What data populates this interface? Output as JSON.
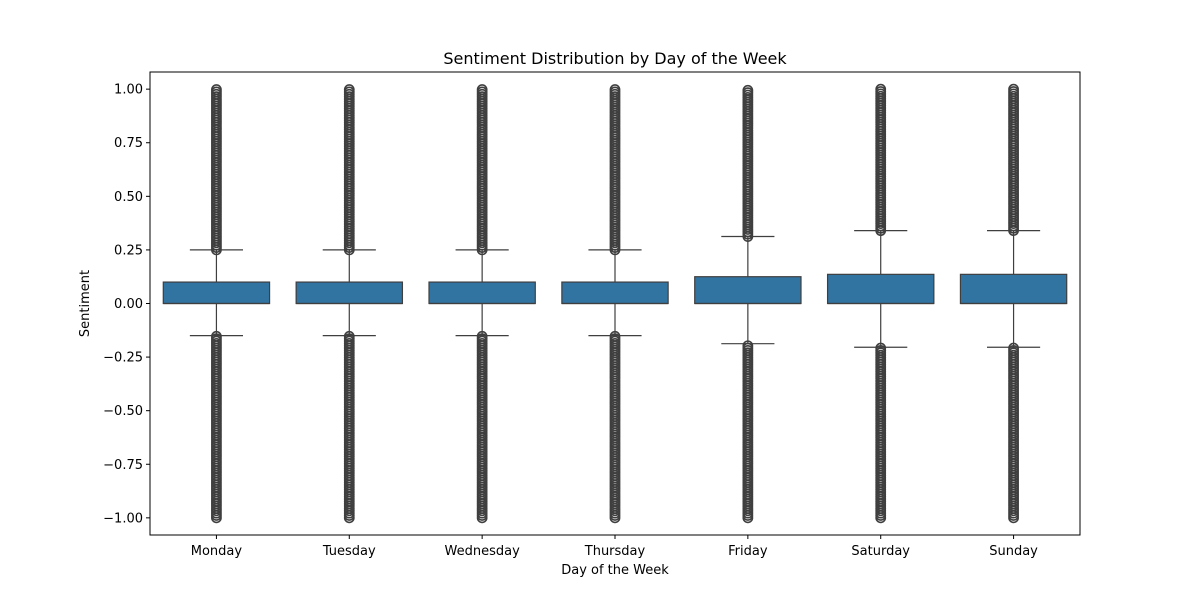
{
  "chart_data": {
    "type": "box",
    "title": "Sentiment Distribution by Day of the Week",
    "xlabel": "Day of the Week",
    "ylabel": "Sentiment",
    "ylim": [
      -1.08,
      1.08
    ],
    "yticks": [
      1.0,
      0.75,
      0.5,
      0.25,
      0.0,
      -0.25,
      -0.5,
      -0.75,
      -1.0
    ],
    "ytick_labels": [
      "1.00",
      "0.75",
      "0.50",
      "0.25",
      "0.00",
      "−0.25",
      "−0.50",
      "−0.75",
      "−1.00"
    ],
    "grid": false,
    "colors": {
      "box_fill": "#3274a1",
      "line": "#3f3f3f",
      "frame": "#000000"
    },
    "categories": [
      "Monday",
      "Tuesday",
      "Wednesday",
      "Thursday",
      "Friday",
      "Saturday",
      "Sunday"
    ],
    "boxes": [
      {
        "day": "Monday",
        "q1": 0.0,
        "median": 0.0,
        "q3": 0.1,
        "whisker_low": -0.15,
        "whisker_high": 0.25,
        "outliers_high": [
          0.25,
          1.0
        ],
        "outliers_low": [
          -1.0,
          -0.15
        ]
      },
      {
        "day": "Tuesday",
        "q1": 0.0,
        "median": 0.0,
        "q3": 0.1,
        "whisker_low": -0.15,
        "whisker_high": 0.25,
        "outliers_high": [
          0.25,
          1.0
        ],
        "outliers_low": [
          -1.0,
          -0.15
        ]
      },
      {
        "day": "Wednesday",
        "q1": 0.0,
        "median": 0.0,
        "q3": 0.1,
        "whisker_low": -0.15,
        "whisker_high": 0.25,
        "outliers_high": [
          0.25,
          1.0
        ],
        "outliers_low": [
          -1.0,
          -0.15
        ]
      },
      {
        "day": "Thursday",
        "q1": 0.0,
        "median": 0.0,
        "q3": 0.1,
        "whisker_low": -0.15,
        "whisker_high": 0.25,
        "outliers_high": [
          0.25,
          1.0
        ],
        "outliers_low": [
          -1.0,
          -0.15
        ]
      },
      {
        "day": "Friday",
        "q1": 0.0,
        "median": 0.0,
        "q3": 0.125,
        "whisker_low": -0.1875,
        "whisker_high": 0.3125,
        "outliers_high": [
          0.3125,
          1.0
        ],
        "outliers_low": [
          -1.0,
          -0.1875
        ]
      },
      {
        "day": "Saturday",
        "q1": 0.0,
        "median": 0.0,
        "q3": 0.136,
        "whisker_low": -0.204,
        "whisker_high": 0.34,
        "outliers_high": [
          0.34,
          1.0
        ],
        "outliers_low": [
          -1.0,
          -0.204
        ]
      },
      {
        "day": "Sunday",
        "q1": 0.0,
        "median": 0.0,
        "q3": 0.136,
        "whisker_low": -0.204,
        "whisker_high": 0.34,
        "outliers_high": [
          0.34,
          1.0
        ],
        "outliers_low": [
          -1.0,
          -0.204
        ]
      }
    ]
  }
}
